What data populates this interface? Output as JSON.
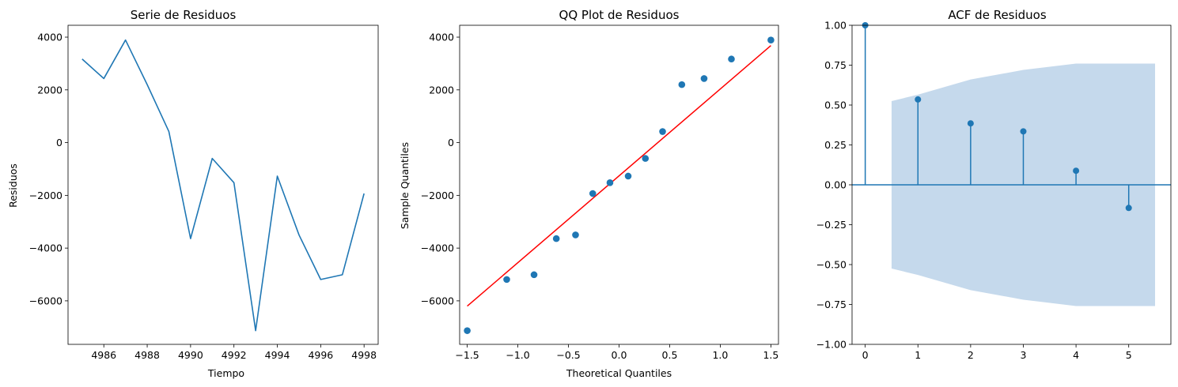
{
  "chart_data": [
    {
      "type": "line",
      "title": "Serie de Residuos",
      "xlabel": "Tiempo",
      "ylabel": "Residuos",
      "xlim": [
        4984.35,
        4998.65
      ],
      "ylim": [
        -7650,
        4450
      ],
      "xticks": [
        4986,
        4988,
        4990,
        4992,
        4994,
        4996,
        4998
      ],
      "yticks": [
        -6000,
        -4000,
        -2000,
        0,
        2000,
        4000
      ],
      "grid": false,
      "color": "#1f77b4",
      "series": [
        {
          "x": [
            4985,
            4986,
            4987,
            4988,
            4989,
            4990,
            4991,
            4992,
            4993,
            4994,
            4995,
            4996,
            4997,
            4998
          ],
          "y": [
            3170,
            2430,
            3890,
            2200,
            420,
            -3640,
            -600,
            -1520,
            -7130,
            -1270,
            -3500,
            -5190,
            -5010,
            -1930
          ]
        }
      ]
    },
    {
      "type": "scatter",
      "title": "QQ Plot de Residuos",
      "xlabel": "Theoretical Quantiles",
      "ylabel": "Sample Quantiles",
      "xlim": [
        -1.575,
        1.575
      ],
      "ylim": [
        -7650,
        4450
      ],
      "xticks": [
        -1.5,
        -1.0,
        -0.5,
        0.0,
        0.5,
        1.0,
        1.5
      ],
      "yticks": [
        -6000,
        -4000,
        -2000,
        0,
        2000,
        4000
      ],
      "grid": false,
      "point_color": "#1f77b4",
      "line_color": "#ff0000",
      "points": {
        "x": [
          -1.5,
          -1.11,
          -0.84,
          -0.62,
          -0.43,
          -0.26,
          -0.09,
          0.09,
          0.26,
          0.43,
          0.62,
          0.84,
          1.11,
          1.5
        ],
        "y": [
          -7130,
          -5190,
          -5010,
          -3640,
          -3500,
          -1930,
          -1520,
          -1270,
          -600,
          420,
          2200,
          2430,
          3170,
          3890
        ]
      },
      "reference_line": {
        "x": [
          -1.5,
          1.5
        ],
        "y": [
          -6200,
          3680
        ]
      }
    },
    {
      "type": "stem",
      "title": "ACF de Residuos",
      "xlabel": "",
      "ylabel": "",
      "xlim": [
        -0.25,
        5.8
      ],
      "ylim": [
        -1.0,
        1.0
      ],
      "xticks": [
        0,
        1,
        2,
        3,
        4,
        5
      ],
      "yticks": [
        -1.0,
        -0.75,
        -0.5,
        -0.25,
        0.0,
        0.25,
        0.5,
        0.75,
        1.0
      ],
      "grid": false,
      "color": "#1f77b4",
      "band_color": "#c5d9ec",
      "lags": [
        0,
        1,
        2,
        3,
        4,
        5
      ],
      "values": [
        1.0,
        0.535,
        0.385,
        0.335,
        0.088,
        -0.145
      ],
      "confidence_band": {
        "x": [
          0.5,
          1,
          2,
          3,
          4,
          5,
          5.5
        ],
        "upper": [
          0.525,
          0.565,
          0.66,
          0.72,
          0.76,
          0.76,
          0.76
        ]
      }
    }
  ]
}
